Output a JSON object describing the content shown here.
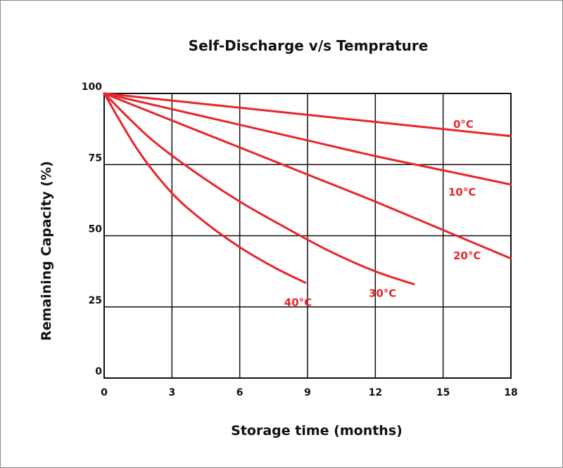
{
  "chart_data": {
    "type": "line",
    "title": "Self-Discharge v/s Temprature",
    "xlabel": "Storage time (months)",
    "ylabel": "Remaining Capacity (%)",
    "xlim": [
      0,
      18
    ],
    "ylim": [
      0,
      100
    ],
    "x_ticks": [
      "0",
      "3",
      "6",
      "9",
      "12",
      "15",
      "18"
    ],
    "y_ticks": [
      "0",
      "25",
      "50",
      "75",
      "100"
    ],
    "grid": true,
    "line_color": "#e8262b",
    "series": [
      {
        "name": "0°C",
        "x": [
          0,
          3,
          6,
          9,
          12,
          15,
          18
        ],
        "y": [
          100,
          97.5,
          95,
          92.5,
          90,
          87.5,
          85
        ]
      },
      {
        "name": "10°C",
        "x": [
          0,
          3,
          6,
          9,
          12,
          15,
          18
        ],
        "y": [
          100,
          94.5,
          89,
          83.5,
          78,
          73,
          68
        ]
      },
      {
        "name": "20°C",
        "x": [
          0,
          3,
          6,
          9,
          12,
          15,
          18
        ],
        "y": [
          100,
          90.5,
          81,
          71.5,
          62,
          52,
          42
        ]
      },
      {
        "name": "30°C",
        "x": [
          0,
          2,
          4,
          6,
          8,
          10,
          12,
          13.7
        ],
        "y": [
          100,
          84.5,
          72.5,
          62,
          53,
          44.5,
          37.5,
          33
        ]
      },
      {
        "name": "40°C",
        "x": [
          0,
          1.5,
          3,
          4.5,
          6,
          7.5,
          8.9
        ],
        "y": [
          100,
          80,
          65,
          54.5,
          46,
          39,
          33.5
        ]
      }
    ]
  }
}
